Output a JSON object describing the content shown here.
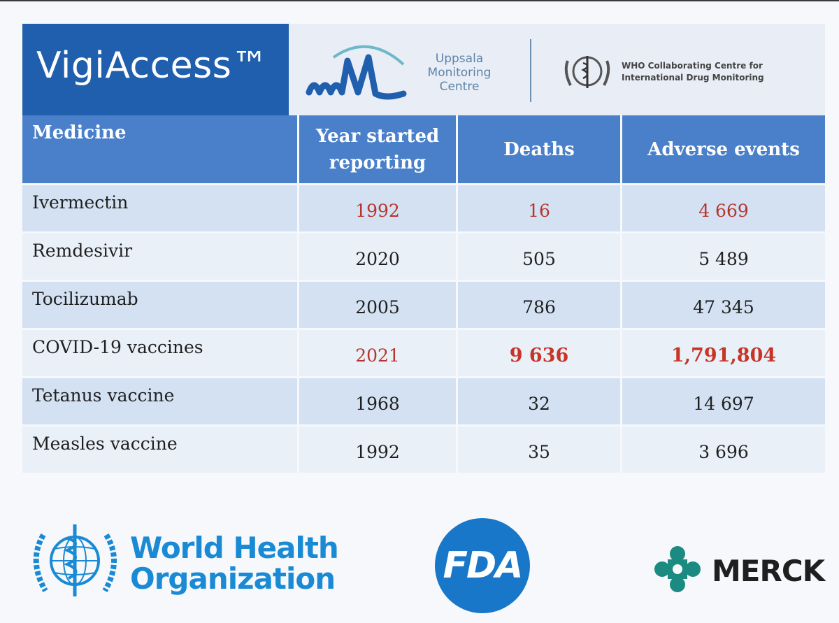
{
  "header": {
    "brand": "VigiAccess™",
    "umc": {
      "lines": [
        "Uppsala",
        "Monitoring",
        "Centre"
      ]
    },
    "who_cc": {
      "lines": [
        "WHO Collaborating Centre for",
        "International Drug Monitoring"
      ]
    }
  },
  "table": {
    "columns": [
      "Medicine",
      "Year started reporting",
      "Deaths",
      "Adverse events"
    ],
    "column_lines": {
      "year": [
        "Year started",
        "reporting"
      ]
    },
    "rows": [
      {
        "medicine": "Ivermectin",
        "year": "1992",
        "deaths": "16",
        "adverse_events": "4 669"
      },
      {
        "medicine": "Remdesivir",
        "year": "2020",
        "deaths": "505",
        "adverse_events": "5 489"
      },
      {
        "medicine": "Tocilizumab",
        "year": "2005",
        "deaths": "786",
        "adverse_events": "47 345"
      },
      {
        "medicine": "COVID-19 vaccines",
        "year": "2021",
        "deaths": "9 636",
        "adverse_events": "1,791,804"
      },
      {
        "medicine": "Tetanus vaccine",
        "year": "1968",
        "deaths": "32",
        "adverse_events": "14 697"
      },
      {
        "medicine": "Measles vaccine",
        "year": "1992",
        "deaths": "35",
        "adverse_events": "3 696"
      }
    ]
  },
  "footer": {
    "who": {
      "lines": [
        "World Health",
        "Organization"
      ]
    },
    "fda": "FDA",
    "merck": "MERCK"
  },
  "colors": {
    "brand_blue": "#1f5fae",
    "header_blue": "#4a80c9",
    "row_dark": "#d3e1f2",
    "row_light": "#e9f0f8",
    "highlight_red": "#c83426",
    "who_blue": "#1a8ad4",
    "fda_blue": "#1877c8",
    "merck_teal": "#1b8a80"
  },
  "icons": [
    "umc-logo-icon",
    "who-emblem-icon",
    "fda-logo-icon",
    "merck-logo-icon"
  ]
}
